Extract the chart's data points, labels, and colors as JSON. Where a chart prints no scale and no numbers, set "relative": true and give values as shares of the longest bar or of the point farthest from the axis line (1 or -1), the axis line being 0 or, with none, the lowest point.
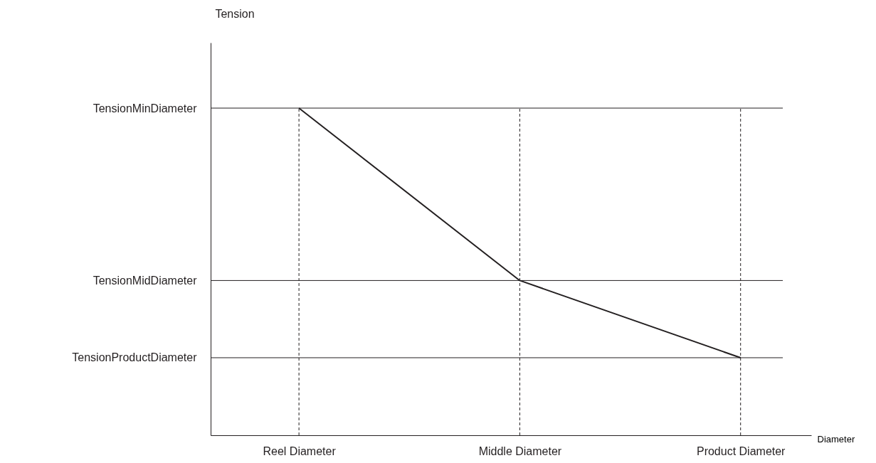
{
  "chart_data": {
    "type": "line",
    "relative": true,
    "xlabel": "Diameter",
    "annotations": [
      "Tension"
    ],
    "categories": [
      "Reel Diameter",
      "Middle Diameter",
      "Product Diameter"
    ],
    "series": [
      {
        "color": "#231f20",
        "values": [
          1,
          0.473,
          0.237
        ]
      }
    ],
    "ref_lines": [
      {
        "axis": "y",
        "value": 1,
        "label": "TensionMinDiameter",
        "color": "#231f20",
        "line_style": "solid"
      },
      {
        "axis": "y",
        "value": 0.473,
        "label": "TensionMidDiameter",
        "color": "#231f20",
        "line_style": "solid"
      },
      {
        "axis": "y",
        "value": 0.237,
        "label": "TensionProductDiameter",
        "color": "#231f20",
        "line_style": "solid"
      }
    ],
    "grid": "x",
    "marker": "none",
    "line_style": "solid"
  }
}
